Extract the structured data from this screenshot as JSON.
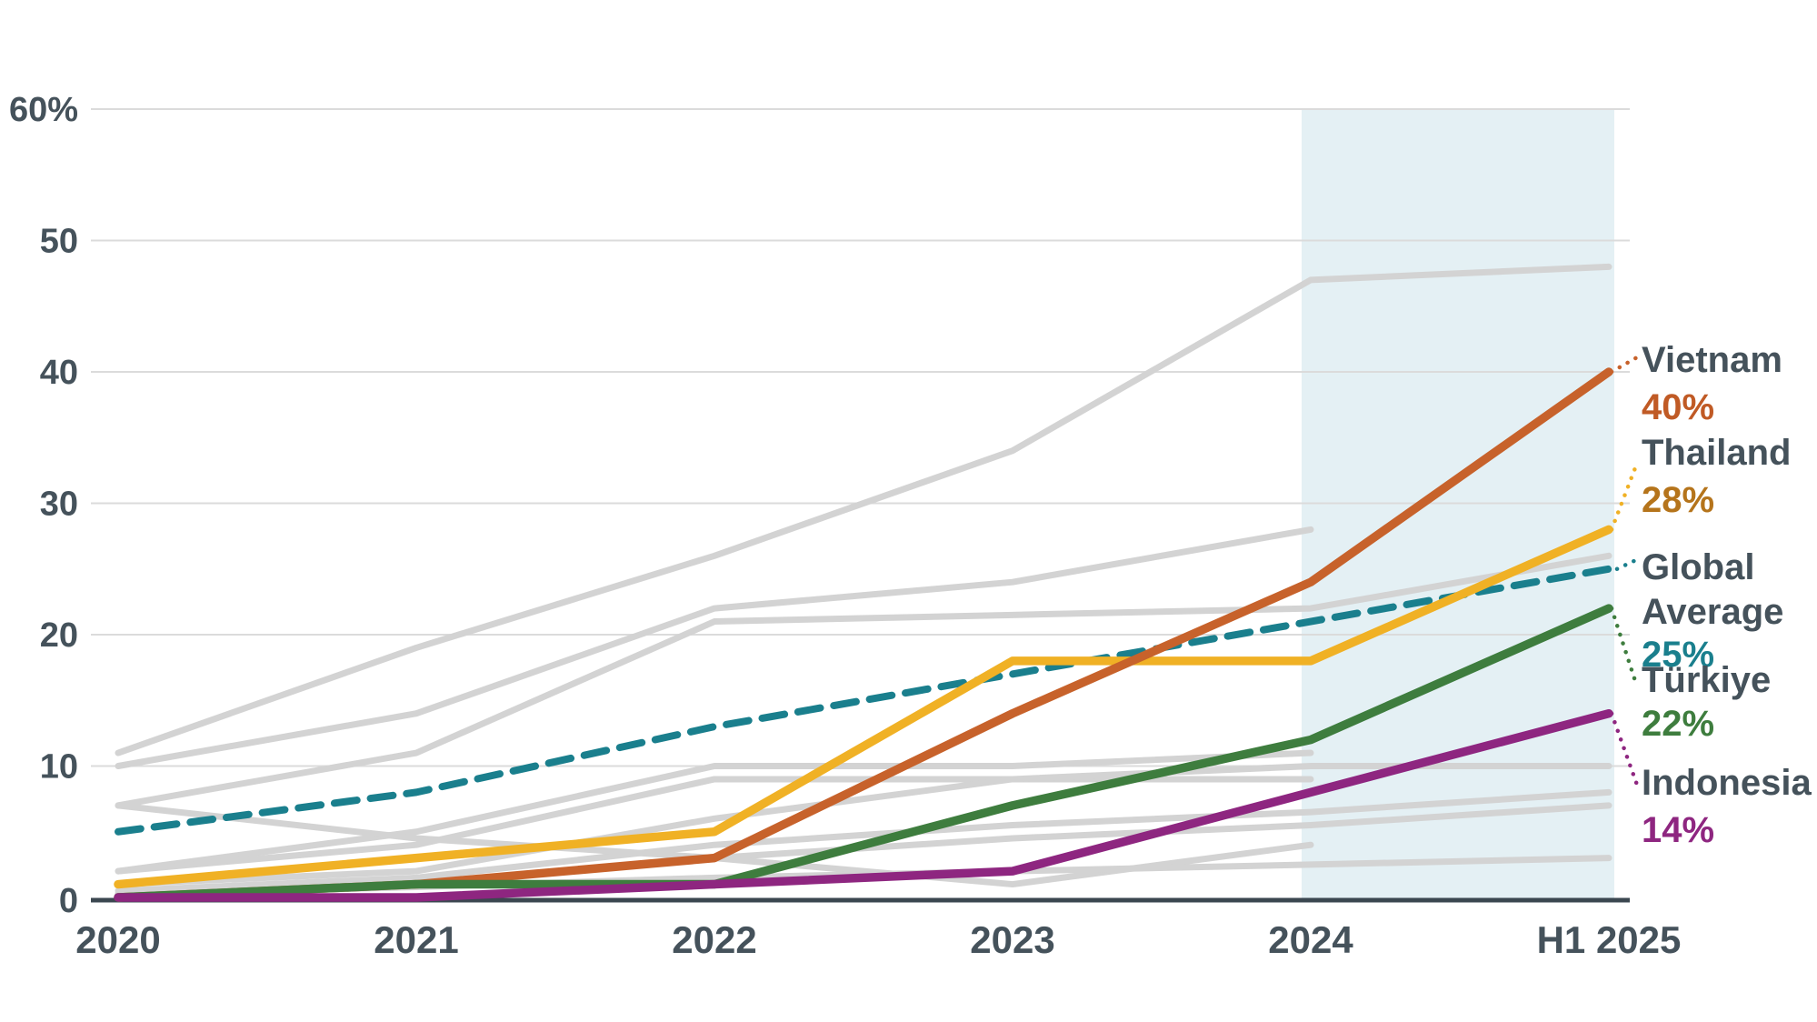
{
  "chart_data": {
    "type": "line",
    "title": "",
    "x_categories": [
      "2020",
      "2021",
      "2022",
      "2023",
      "2024",
      "H1 2025"
    ],
    "y_axis": {
      "tick_labels": [
        "60%",
        "50",
        "40",
        "30",
        "20",
        "10",
        "0"
      ],
      "tick_values": [
        60,
        50,
        40,
        30,
        20,
        10,
        0
      ],
      "range": [
        0,
        60
      ],
      "grid": true
    },
    "shaded_region": {
      "from_category": "2024",
      "to_category": "H1 2025",
      "color": "#E4F0F4"
    },
    "series": [
      {
        "id": "vietnam",
        "name": "Vietnam",
        "value_label": "40%",
        "color": "#C7622B",
        "value_color": "#C05A25",
        "dash": "solid",
        "values": [
          0,
          1,
          3,
          14,
          24,
          40
        ]
      },
      {
        "id": "thailand",
        "name": "Thailand",
        "value_label": "28%",
        "color": "#F0B125",
        "value_color": "#B5741B",
        "dash": "solid",
        "values": [
          1,
          3,
          5,
          18,
          18,
          28
        ]
      },
      {
        "id": "global",
        "name": "Global Average",
        "name_lines": [
          "Global",
          "Average"
        ],
        "value_label": "25%",
        "color": "#1A7F8D",
        "value_color": "#1A7F8D",
        "dash": "dashed",
        "values": [
          5,
          8,
          13,
          17,
          21,
          25
        ]
      },
      {
        "id": "turkiye",
        "name": "Türkiye",
        "value_label": "22%",
        "color": "#3E7D3E",
        "value_color": "#3E7D3E",
        "dash": "solid",
        "values": [
          0,
          1,
          1,
          7,
          12,
          22
        ]
      },
      {
        "id": "indonesia",
        "name": "Indonesia",
        "value_label": "14%",
        "color": "#8E2680",
        "value_color": "#8E2680",
        "dash": "solid",
        "values": [
          0,
          0,
          1,
          2,
          8,
          14
        ]
      }
    ],
    "background_series": [
      {
        "values": [
          11,
          19,
          26,
          34,
          47,
          48
        ]
      },
      {
        "values": [
          10,
          14,
          22,
          24,
          28,
          null
        ]
      },
      {
        "values": [
          7,
          11,
          21,
          21.5,
          22,
          26
        ]
      },
      {
        "values": [
          2,
          5,
          10,
          10,
          11,
          null
        ]
      },
      {
        "values": [
          2,
          4,
          9,
          9,
          9,
          null
        ]
      },
      {
        "values": [
          1,
          2,
          6,
          9,
          10,
          10
        ]
      },
      {
        "values": [
          0.5,
          1.5,
          4,
          5.5,
          6.5,
          8
        ]
      },
      {
        "values": [
          0.3,
          1,
          3,
          4.5,
          5.5,
          7
        ]
      },
      {
        "values": [
          7,
          4.5,
          3,
          1,
          4,
          null
        ]
      },
      {
        "values": [
          0.2,
          0.8,
          1.5,
          2,
          2.5,
          3
        ]
      }
    ],
    "background_color_name": "light-gray",
    "legend_position": "right-edge-annotations"
  },
  "colors": {
    "text_dark": "#45525B",
    "axis_line": "#3B4750",
    "gridline": "#DBDBDB",
    "gray_line": "#D3D3D3",
    "band": "#E4F0F4",
    "background": "#FFFFFF"
  }
}
